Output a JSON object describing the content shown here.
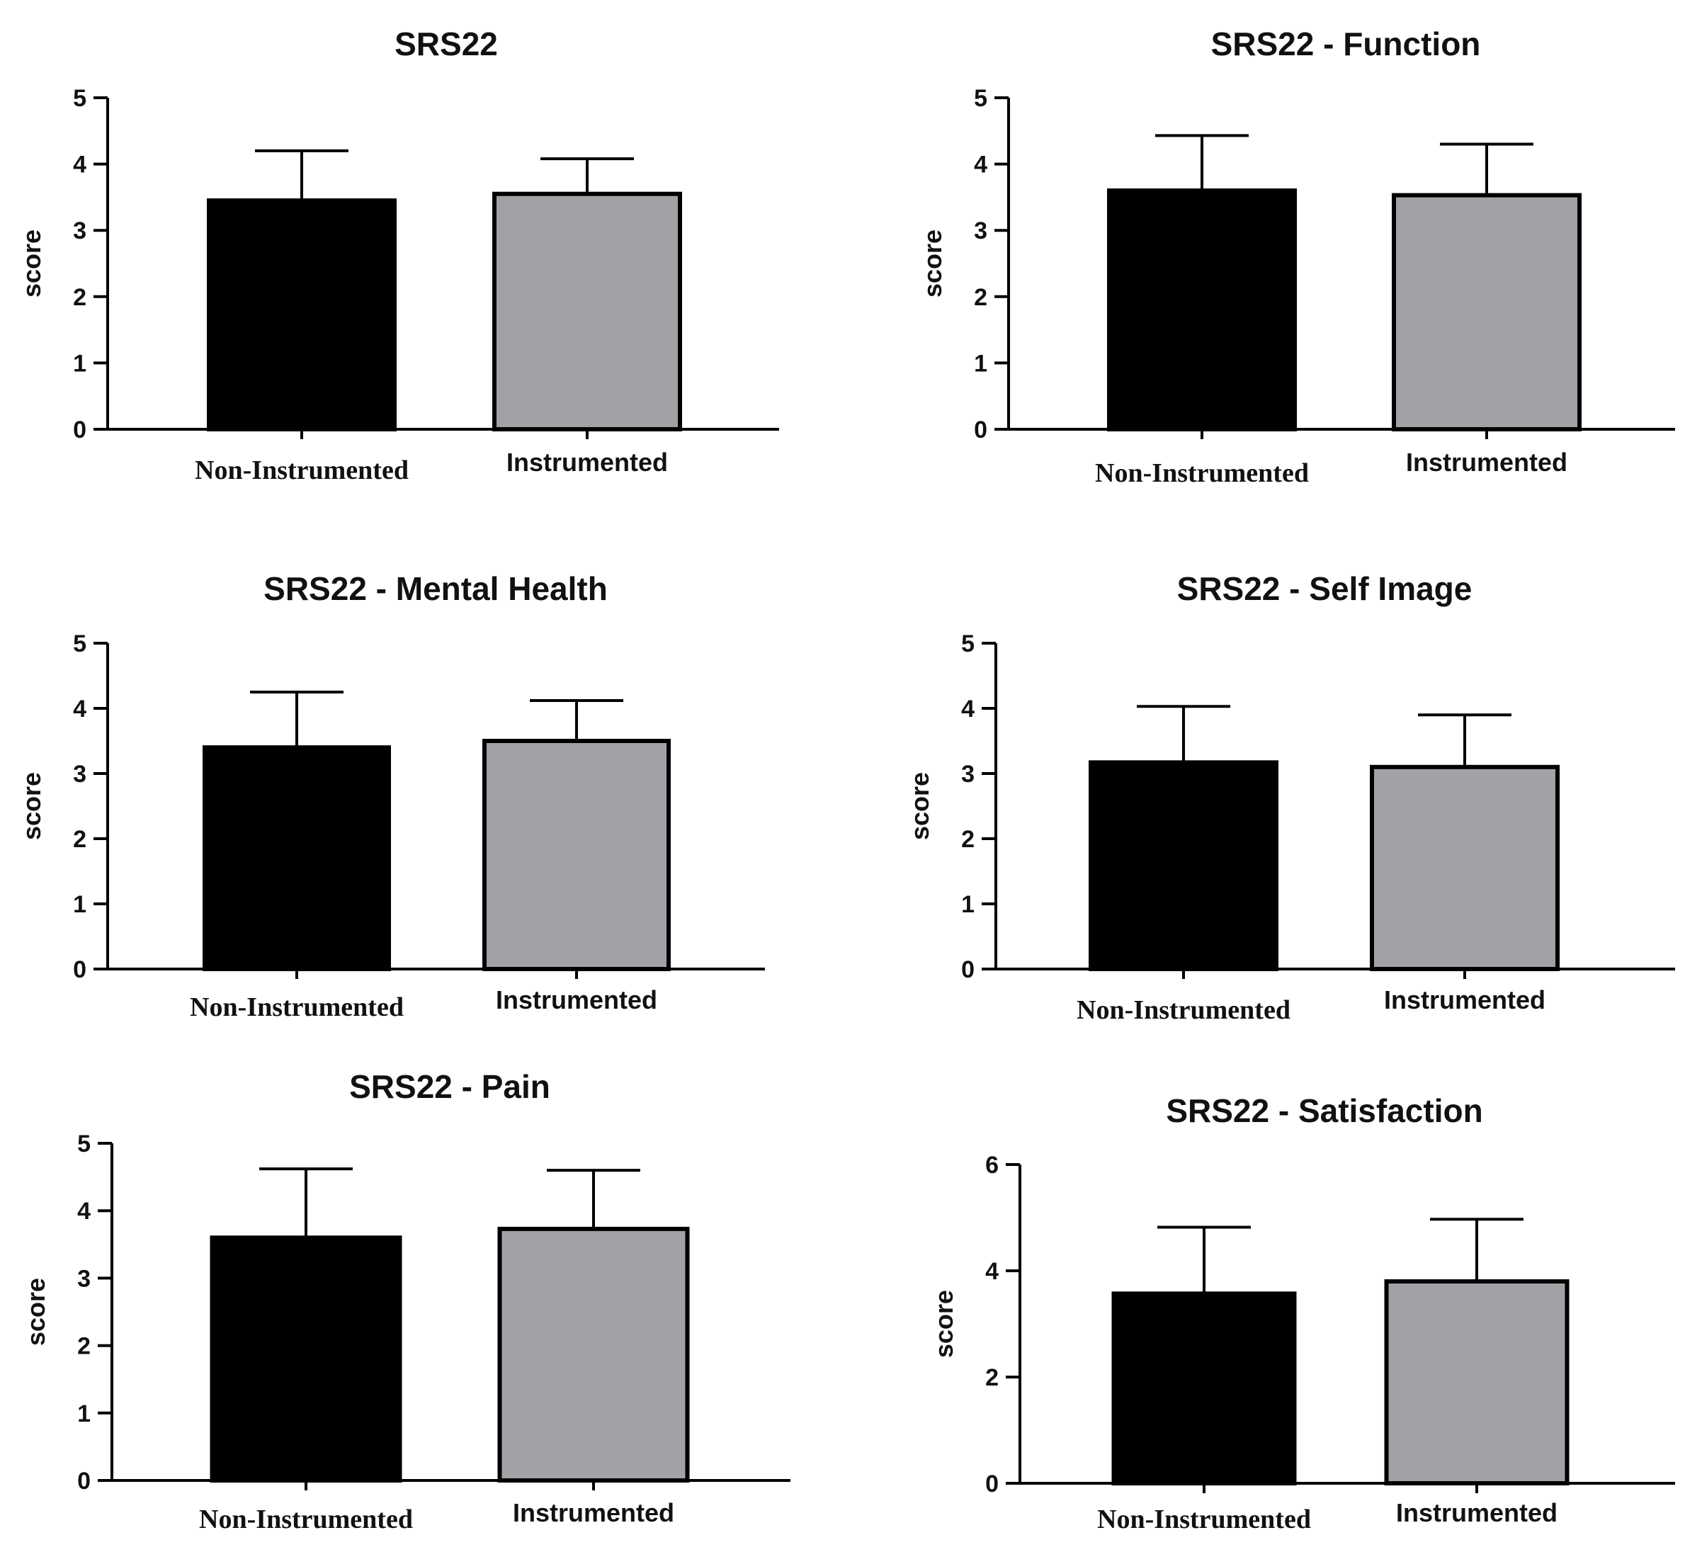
{
  "chart_data": [
    {
      "type": "bar",
      "title": "SRS22",
      "xlabel": "",
      "ylabel": "score",
      "categories": [
        "Non-Instrumented",
        "Instrumented"
      ],
      "values": [
        3.45,
        3.55
      ],
      "error_upper": [
        4.2,
        4.08
      ],
      "ylim": [
        0,
        5
      ],
      "yticks": [
        "0",
        "1",
        "2",
        "3",
        "4",
        "5"
      ],
      "bar_colors": [
        "#000000",
        "#a2a2a6"
      ]
    },
    {
      "type": "bar",
      "title": "SRS22 - Function",
      "xlabel": "",
      "ylabel": "score",
      "categories": [
        "Non-Instrumented",
        "Instrumented"
      ],
      "values": [
        3.6,
        3.53
      ],
      "error_upper": [
        4.43,
        4.3
      ],
      "ylim": [
        0,
        5
      ],
      "yticks": [
        "0",
        "1",
        "2",
        "3",
        "4",
        "5"
      ],
      "bar_colors": [
        "#000000",
        "#a2a2a6"
      ]
    },
    {
      "type": "bar",
      "title": "SRS22 - Mental Health",
      "xlabel": "",
      "ylabel": "score",
      "categories": [
        "Non-Instrumented",
        "Instrumented"
      ],
      "values": [
        3.4,
        3.5
      ],
      "error_upper": [
        4.25,
        4.12
      ],
      "ylim": [
        0,
        5
      ],
      "yticks": [
        "0",
        "1",
        "2",
        "3",
        "4",
        "5"
      ],
      "bar_colors": [
        "#000000",
        "#a2a2a6"
      ]
    },
    {
      "type": "bar",
      "title": "SRS22 - Self Image",
      "xlabel": "",
      "ylabel": "score",
      "categories": [
        "Non-Instrumented",
        "Instrumented"
      ],
      "values": [
        3.17,
        3.1
      ],
      "error_upper": [
        4.03,
        3.9
      ],
      "ylim": [
        0,
        5
      ],
      "yticks": [
        "0",
        "1",
        "2",
        "3",
        "4",
        "5"
      ],
      "bar_colors": [
        "#000000",
        "#a2a2a6"
      ]
    },
    {
      "type": "bar",
      "title": "SRS22 - Pain",
      "xlabel": "",
      "ylabel": "score",
      "categories": [
        "Non-Instrumented",
        "Instrumented"
      ],
      "values": [
        3.6,
        3.73
      ],
      "error_upper": [
        4.62,
        4.6
      ],
      "ylim": [
        0,
        5
      ],
      "yticks": [
        "0",
        "1",
        "2",
        "3",
        "4",
        "5"
      ],
      "bar_colors": [
        "#000000",
        "#a2a2a6"
      ]
    },
    {
      "type": "bar",
      "title": "SRS22 - Satisfaction",
      "xlabel": "",
      "ylabel": "score",
      "categories": [
        "Non-Instrumented",
        "Instrumented"
      ],
      "values": [
        3.57,
        3.8
      ],
      "error_upper": [
        4.82,
        4.97
      ],
      "ylim": [
        0,
        6
      ],
      "yticks": [
        "0",
        "2",
        "4",
        "6"
      ],
      "bar_colors": [
        "#000000",
        "#a2a2a6"
      ]
    }
  ]
}
